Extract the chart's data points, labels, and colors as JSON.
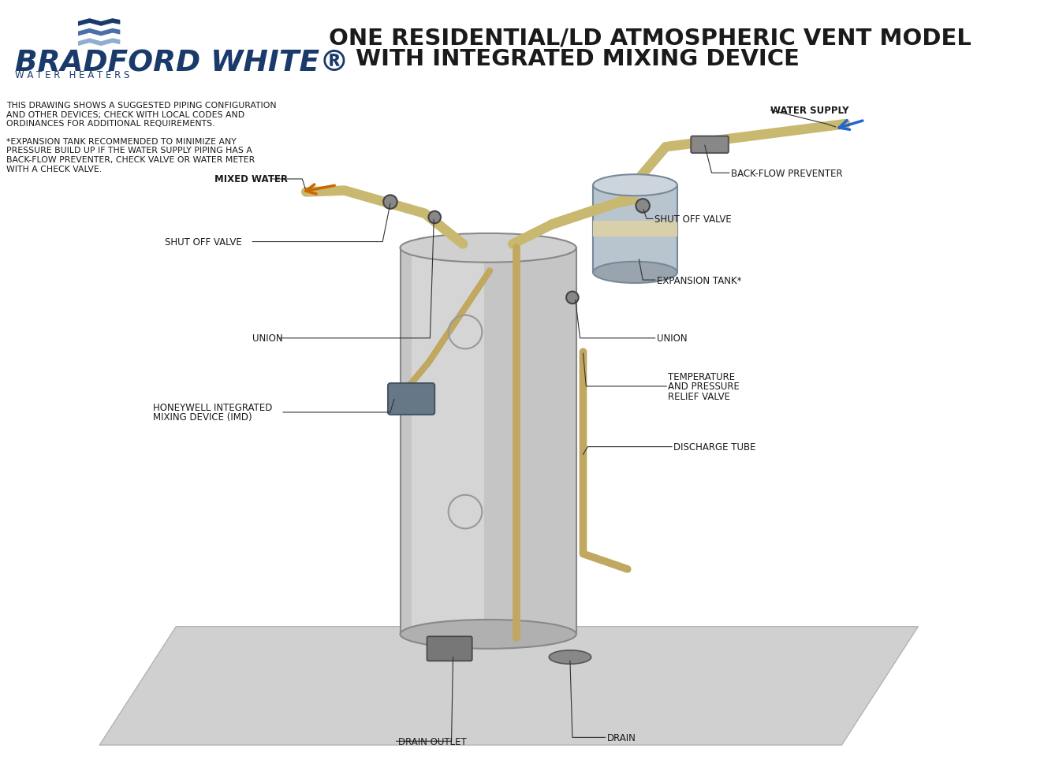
{
  "title_line1": "ONE RESIDENTIAL/LD ATMOSPHERIC VENT MODEL",
  "title_line2": "WITH INTEGRATED MIXING DEVICE",
  "title_color": "#1a1a1a",
  "title_fontsize": 21,
  "brand_name": "BRADFORD WHITE®",
  "brand_subtitle": "W A T E R   H E A T E R S",
  "brand_color": "#1a3a6b",
  "note1_lines": [
    "THIS DRAWING SHOWS A SUGGESTED PIPING CONFIGURATION",
    "AND OTHER DEVICES; CHECK WITH LOCAL CODES AND",
    "ORDINANCES FOR ADDITIONAL REQUIREMENTS."
  ],
  "note2_lines": [
    "*EXPANSION TANK RECOMMENDED TO MINIMIZE ANY",
    "PRESSURE BUILD UP IF THE WATER SUPPLY PIPING HAS A",
    "BACK-FLOW PREVENTER, CHECK VALVE OR WATER METER",
    "WITH A CHECK VALVE."
  ],
  "note_fontsize": 7.8,
  "note_color": "#1a1a1a",
  "label_fontsize": 8.5,
  "label_color": "#1a1a1a",
  "bg_color": "#ffffff",
  "floor_color": "#d0d0d0",
  "floor_edge_color": "#aaaaaa",
  "tank_body_color": "#c5c5c5",
  "tank_highlight_color": "#dcdcdc",
  "tank_edge_color": "#888888",
  "pipe_color": "#c8b870",
  "pipe_lw": 9,
  "arrow_cold_color": "#2266cc",
  "arrow_hot_color": "#cc6600",
  "expansion_tank_color": "#b8c4ce",
  "expansion_tank_band_color": "#d8d0a8",
  "line_color": "#333333"
}
